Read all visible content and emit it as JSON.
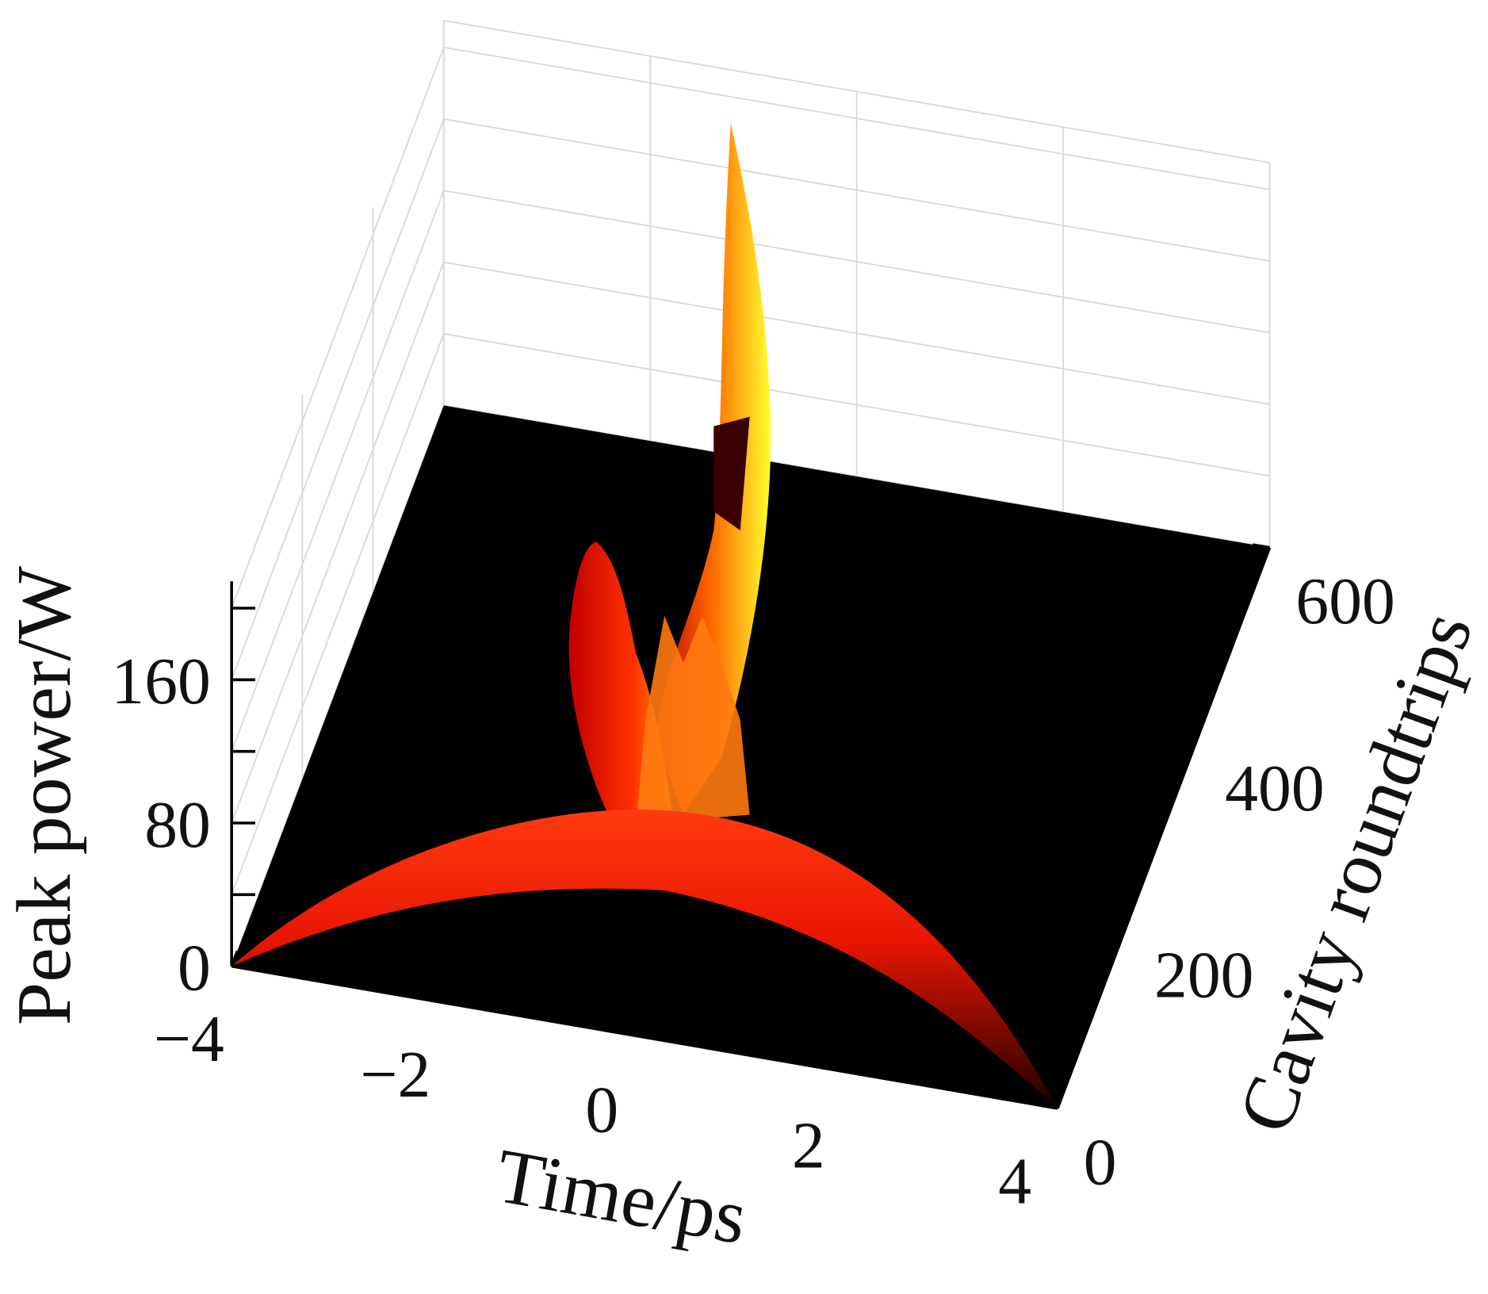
{
  "chart_data": {
    "type": "surface",
    "xlabel": "Time/ps",
    "ylabel": "Cavity roundtrips",
    "zlabel": "Peak power/W",
    "xlim": [
      -4,
      4
    ],
    "xticks": [
      {
        "value": -4,
        "label": "−4"
      },
      {
        "value": -2,
        "label": "−2"
      },
      0,
      2,
      4
    ],
    "ylim": [
      0,
      600
    ],
    "yticks": [
      0,
      200,
      400,
      600
    ],
    "zlim": [
      0,
      215
    ],
    "zticks": [
      0,
      80,
      160
    ],
    "zminorticks": [
      40,
      120,
      200
    ],
    "grid": true,
    "floor_color": "#000000",
    "colormap": [
      "#000000",
      "#ff2000",
      "#ffff20"
    ]
  }
}
